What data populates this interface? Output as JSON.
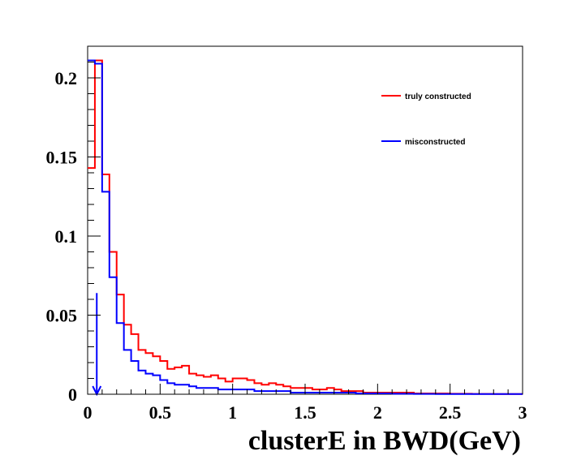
{
  "chart_data": {
    "type": "histogram",
    "title": "",
    "xlabel": "clusterE in BWD(GeV)",
    "ylabel": "",
    "xlim": [
      0,
      3
    ],
    "ylim": [
      0,
      0.22
    ],
    "bin_width": 0.05,
    "x_ticks": [
      0,
      0.5,
      1,
      1.5,
      2,
      2.5,
      3
    ],
    "x_tick_labels": [
      "0",
      "0.5",
      "1",
      "1.5",
      "2",
      "2.5",
      "3"
    ],
    "y_ticks": [
      0,
      0.05,
      0.1,
      0.15,
      0.2
    ],
    "y_tick_labels": [
      "0",
      "0.05",
      "0.1",
      "0.15",
      "0.2"
    ],
    "grid": false,
    "legend_position": "top-right",
    "series": [
      {
        "name": "truly constructed",
        "color": "#ff0000",
        "values": [
          0.143,
          0.211,
          0.139,
          0.09,
          0.063,
          0.044,
          0.038,
          0.028,
          0.026,
          0.024,
          0.021,
          0.016,
          0.017,
          0.018,
          0.013,
          0.012,
          0.011,
          0.012,
          0.01,
          0.008,
          0.01,
          0.01,
          0.009,
          0.007,
          0.006,
          0.007,
          0.006,
          0.005,
          0.004,
          0.004,
          0.004,
          0.003,
          0.003,
          0.004,
          0.003,
          0.002,
          0.002,
          0.002,
          0.001,
          0.001,
          0.001,
          0.001,
          0.001,
          0.001,
          0.001,
          0.0005,
          0.0005,
          0.0005,
          0.0005,
          0.0005,
          0.0003,
          0.0003,
          0.0003,
          0.0002,
          0.0002,
          0.0002,
          0.0001,
          0.0001,
          0.0001,
          0.0001
        ]
      },
      {
        "name": "misconstructed",
        "color": "#0000ff",
        "values": [
          0.211,
          0.209,
          0.128,
          0.074,
          0.045,
          0.028,
          0.021,
          0.015,
          0.013,
          0.012,
          0.009,
          0.007,
          0.006,
          0.006,
          0.005,
          0.004,
          0.004,
          0.004,
          0.003,
          0.003,
          0.003,
          0.003,
          0.003,
          0.002,
          0.002,
          0.002,
          0.002,
          0.002,
          0.001,
          0.001,
          0.001,
          0.001,
          0.001,
          0.001,
          0.001,
          0.001,
          0.001,
          0.0005,
          0.0005,
          0.0005,
          0.0005,
          0.0005,
          0.0003,
          0.0003,
          0.0003,
          0.0002,
          0.0002,
          0.0002,
          0.0001,
          0.0001,
          0.0001,
          0.0001,
          0.0001,
          0.0001,
          0.0001,
          0.0001,
          0.0001,
          0.0001,
          0.0001,
          0.0001
        ]
      }
    ],
    "annotations": [
      {
        "type": "arrow",
        "color": "#0000ff",
        "x": 0.063,
        "y_from": 0.064,
        "y_to": 0.0
      }
    ]
  },
  "legend": {
    "items": [
      "truly constructed",
      "misconstructed"
    ]
  }
}
